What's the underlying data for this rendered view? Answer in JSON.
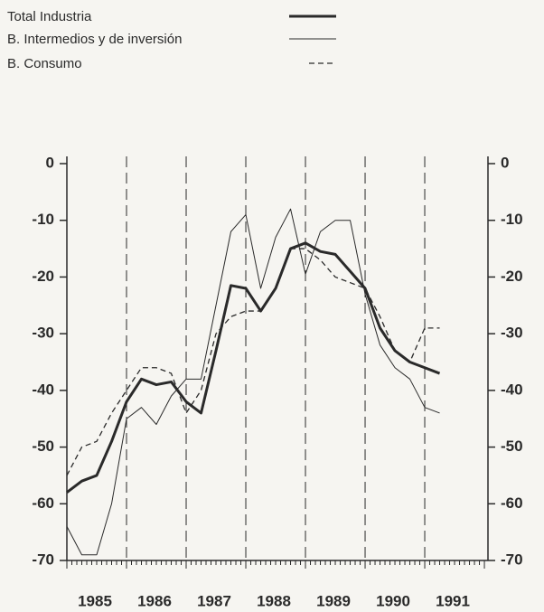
{
  "chart_data": {
    "type": "line",
    "x": [
      1985,
      1985.25,
      1985.5,
      1985.75,
      1986,
      1986.25,
      1986.5,
      1986.75,
      1987,
      1987.25,
      1987.5,
      1987.75,
      1988,
      1988.25,
      1988.5,
      1988.75,
      1989,
      1989.25,
      1989.5,
      1989.75,
      1990,
      1990.25,
      1990.5,
      1990.75,
      1991,
      1991.25
    ],
    "series": [
      {
        "name": "Total Industria",
        "color": "#2a2a2a",
        "style": "thick",
        "values": [
          -58,
          -56,
          -55,
          -49,
          -42,
          -38,
          -39,
          -38.5,
          -42,
          -44,
          -33,
          -21.5,
          -22,
          -26,
          -22,
          -15,
          -14,
          -15.5,
          -16,
          -19,
          -22,
          -29,
          -33,
          -35,
          -36,
          -37
        ]
      },
      {
        "name": "B. Intermedios y de inversión",
        "color": "#2a2a2a",
        "style": "thin",
        "values": [
          -64,
          -69,
          -69,
          -60,
          -45,
          -43,
          -46,
          -41,
          -38,
          -38,
          -25,
          -12,
          -9,
          -22,
          -13,
          -8,
          -19.5,
          -12,
          -10,
          -10,
          -23,
          -32,
          -36,
          -38,
          -43,
          -44
        ]
      },
      {
        "name": "B. Consumo",
        "color": "#2a2a2a",
        "style": "dashed",
        "values": [
          -55,
          -50,
          -49,
          -44,
          -40,
          -36,
          -36,
          -37,
          -44,
          -40,
          -30,
          -27,
          -26,
          -26,
          -22,
          -15,
          -15,
          -17,
          -20,
          -21,
          -22,
          -27,
          -33,
          -35,
          -29,
          -29
        ]
      }
    ],
    "xlim": [
      1985,
      1992.06
    ],
    "xticks": [
      1985,
      1986,
      1987,
      1988,
      1989,
      1990,
      1991
    ],
    "ylim": [
      -70,
      0
    ],
    "yticks": [
      0,
      -10,
      -20,
      -30,
      -40,
      -50,
      -60,
      -70
    ],
    "grid": true
  }
}
